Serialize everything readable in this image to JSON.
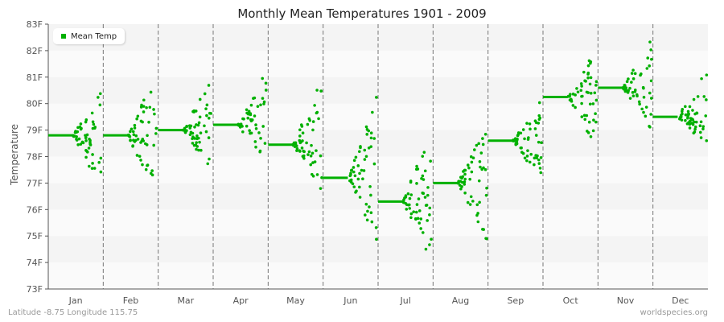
{
  "title": "Monthly Mean Temperatures 1901 - 2009",
  "footer": {
    "location": "Latitude -8.75 Longitude 115.75",
    "source": "worldspecies.org"
  },
  "colors": {
    "series": "#00b000",
    "band_a": "#f4f4f4",
    "band_b": "#fafafa",
    "divider": "#777777",
    "axis": "#555555"
  },
  "chart_data": {
    "type": "scatter",
    "title": "Monthly Mean Temperatures 1901 - 2009",
    "xlabel": "",
    "ylabel": "Temperature",
    "ylim": [
      73,
      83
    ],
    "yticks": [
      "73F",
      "74F",
      "75F",
      "76F",
      "77F",
      "78F",
      "79F",
      "80F",
      "81F",
      "82F",
      "83F"
    ],
    "categories": [
      "Jan",
      "Feb",
      "Mar",
      "Apr",
      "May",
      "Jun",
      "Jul",
      "Aug",
      "Sep",
      "Oct",
      "Nov",
      "Dec"
    ],
    "legend": {
      "entries": [
        "Mean Temp"
      ],
      "position": "top-left"
    },
    "grid": "alternating horizontal bands",
    "series": [
      {
        "name": "Mean Temp",
        "values": [
          78.8,
          78.8,
          79.0,
          79.2,
          78.45,
          77.2,
          76.3,
          77.0,
          78.6,
          80.25,
          80.6,
          79.5
        ]
      }
    ],
    "yearly_ranges": [
      {
        "month": "Jan",
        "min": 76.6,
        "max": 80.6
      },
      {
        "month": "Feb",
        "min": 76.3,
        "max": 81.3
      },
      {
        "month": "Mar",
        "min": 77.4,
        "max": 81.1
      },
      {
        "month": "Apr",
        "min": 77.6,
        "max": 81.3
      },
      {
        "month": "May",
        "min": 76.7,
        "max": 81.0
      },
      {
        "month": "Jun",
        "min": 74.8,
        "max": 80.4
      },
      {
        "month": "Jul",
        "min": 73.9,
        "max": 79.2
      },
      {
        "month": "Aug",
        "min": 74.8,
        "max": 79.5
      },
      {
        "month": "Sep",
        "min": 77.0,
        "max": 80.3
      },
      {
        "month": "Oct",
        "min": 78.3,
        "max": 82.2
      },
      {
        "month": "Nov",
        "min": 79.0,
        "max": 82.6
      },
      {
        "month": "Dec",
        "min": 78.1,
        "max": 81.3
      }
    ]
  }
}
